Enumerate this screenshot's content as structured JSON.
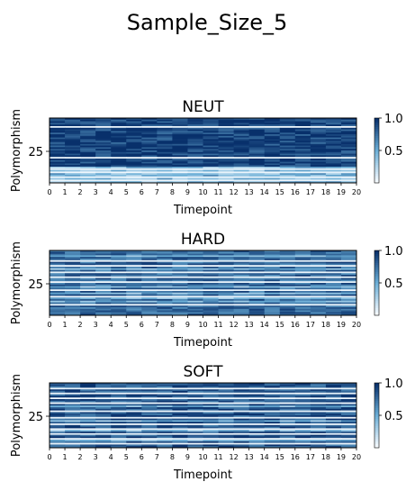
{
  "figure": {
    "suptitle": "Sample_Size_5"
  },
  "colormap": {
    "low": "#f7fbff",
    "mid": "#6baed6",
    "high": "#08306b"
  },
  "chart_data": [
    {
      "type": "heatmap",
      "title": "NEUT",
      "xlabel": "Timepoint",
      "ylabel": "Polymorphism",
      "x_ticks": [
        "0",
        "1",
        "2",
        "3",
        "4",
        "5",
        "6",
        "7",
        "8",
        "9",
        "10",
        "11",
        "12",
        "13",
        "14",
        "15",
        "16",
        "17",
        "18",
        "19",
        "20"
      ],
      "y_ticks": [
        "25"
      ],
      "colorbar_ticks": [
        "1.0",
        "0.5"
      ],
      "value_range": [
        0,
        1
      ],
      "n_rows": 40,
      "n_cols": 20,
      "white_rows": [
        5,
        24,
        31,
        33,
        36,
        38
      ],
      "light_rows": [
        30,
        32,
        34,
        35,
        37,
        39
      ],
      "base_level": 0.93
    },
    {
      "type": "heatmap",
      "title": "HARD",
      "xlabel": "Timepoint",
      "ylabel": "Polymorphism",
      "x_ticks": [
        "0",
        "1",
        "2",
        "3",
        "4",
        "5",
        "6",
        "7",
        "8",
        "9",
        "10",
        "11",
        "12",
        "13",
        "14",
        "15",
        "16",
        "17",
        "18",
        "19",
        "20"
      ],
      "y_ticks": [
        "25"
      ],
      "colorbar_ticks": [
        "1.0",
        "0.5"
      ],
      "value_range": [
        0,
        1
      ],
      "n_rows": 40,
      "n_cols": 20,
      "white_rows": [
        6,
        9,
        13,
        16,
        19,
        24,
        28,
        33
      ],
      "light_rows": [
        3,
        11,
        22,
        26,
        29,
        31
      ],
      "base_level": 0.78
    },
    {
      "type": "heatmap",
      "title": "SOFT",
      "xlabel": "Timepoint",
      "ylabel": "Polymorphism",
      "x_ticks": [
        "0",
        "1",
        "2",
        "3",
        "4",
        "5",
        "6",
        "7",
        "8",
        "9",
        "10",
        "11",
        "12",
        "13",
        "14",
        "15",
        "16",
        "17",
        "18",
        "19",
        "20"
      ],
      "y_ticks": [
        "25"
      ],
      "colorbar_ticks": [
        "1.0",
        "0.5"
      ],
      "value_range": [
        0,
        1
      ],
      "n_rows": 40,
      "n_cols": 20,
      "white_rows": [
        3,
        6,
        9,
        12,
        17,
        21,
        25,
        28,
        31,
        34,
        37
      ],
      "light_rows": [
        14,
        23,
        29,
        35
      ],
      "base_level": 0.85
    }
  ]
}
